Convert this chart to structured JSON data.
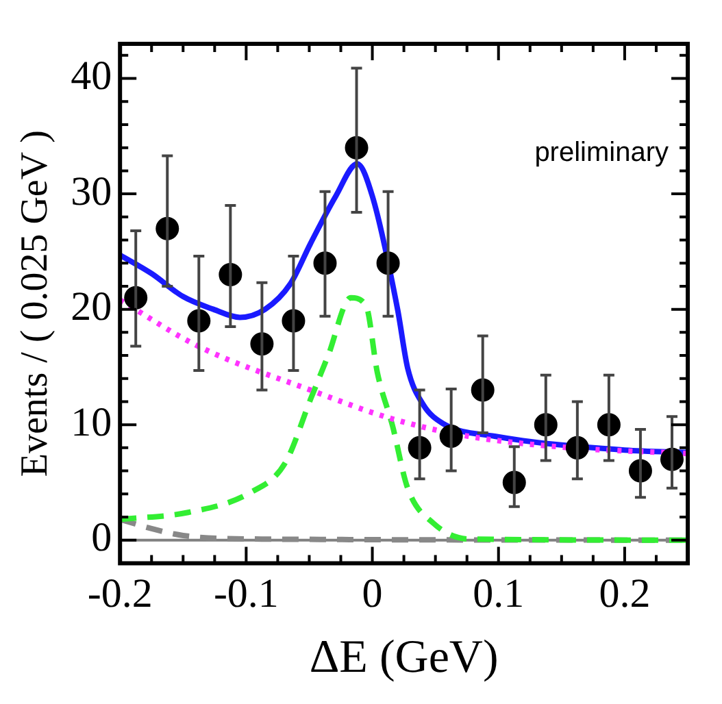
{
  "chart_data": {
    "type": "scatter",
    "xlabel": "ΔE (GeV)",
    "ylabel": "Events / ( 0.025 GeV )",
    "annotations": [
      "preliminary"
    ],
    "xlim": [
      -0.2,
      0.25
    ],
    "ylim": [
      -2,
      43
    ],
    "xticks": [
      -0.2,
      {
        "value": -0.175,
        "label": null
      },
      {
        "value": -0.15,
        "label": null
      },
      {
        "value": -0.125,
        "label": null
      },
      -0.1,
      {
        "value": -0.075,
        "label": null
      },
      {
        "value": -0.05,
        "label": null
      },
      {
        "value": -0.025,
        "label": null
      },
      0,
      {
        "value": 0.025,
        "label": null
      },
      {
        "value": 0.05,
        "label": null
      },
      {
        "value": 0.075,
        "label": null
      },
      0.1,
      {
        "value": 0.125,
        "label": null
      },
      {
        "value": 0.15,
        "label": null
      },
      {
        "value": 0.175,
        "label": null
      },
      0.2,
      {
        "value": 0.225,
        "label": null
      }
    ],
    "yticks": [
      {
        "value": -2,
        "label": null
      },
      0,
      {
        "value": 2,
        "label": null
      },
      {
        "value": 4,
        "label": null
      },
      {
        "value": 6,
        "label": null
      },
      {
        "value": 8,
        "label": null
      },
      10,
      {
        "value": 12,
        "label": null
      },
      {
        "value": 14,
        "label": null
      },
      {
        "value": 16,
        "label": null
      },
      {
        "value": 18,
        "label": null
      },
      20,
      {
        "value": 22,
        "label": null
      },
      {
        "value": 24,
        "label": null
      },
      {
        "value": 26,
        "label": null
      },
      {
        "value": 28,
        "label": null
      },
      30,
      {
        "value": 32,
        "label": null
      },
      {
        "value": 34,
        "label": null
      },
      {
        "value": 36,
        "label": null
      },
      {
        "value": 38,
        "label": null
      },
      40,
      {
        "value": 42,
        "label": null
      }
    ],
    "ref_lines": [
      {
        "axis": "y",
        "value": 0,
        "color": "#808080"
      }
    ],
    "legend": false,
    "series": [
      {
        "type": "line",
        "color": "#ff33ff",
        "line_style": "dotted",
        "marker": "none",
        "x": [
          -0.2,
          -0.138,
          -0.049,
          0.016,
          0.076,
          0.157,
          0.25
        ],
        "values": [
          20.8,
          16.8,
          13,
          10.5,
          9,
          8,
          7.5
        ]
      },
      {
        "type": "line",
        "color": "#33ee33",
        "line_style": "dashed",
        "marker": "none",
        "x": [
          -0.2,
          -0.146,
          -0.097,
          -0.069,
          -0.049,
          -0.035,
          -0.017,
          -0.005,
          0.004,
          0.016,
          0.028,
          0.048,
          0.076,
          0.25
        ],
        "values": [
          1.8,
          2.4,
          4.1,
          6.7,
          12.2,
          16,
          21,
          20.3,
          14.5,
          9.9,
          4.5,
          1.5,
          0.1,
          0
        ]
      },
      {
        "type": "line",
        "color": "#888888",
        "line_style": "dashed",
        "marker": "none",
        "x": [
          -0.2,
          -0.175,
          -0.15,
          -0.1,
          0.25
        ],
        "values": [
          1.8,
          1,
          0.4,
          0.1,
          0
        ]
      },
      {
        "type": "line",
        "color": "#1a1aff",
        "line_style": "solid",
        "marker": "none",
        "x": [
          -0.2,
          -0.175,
          -0.15,
          -0.126,
          -0.105,
          -0.085,
          -0.065,
          -0.049,
          -0.029,
          -0.012,
          0,
          0.02,
          0.028,
          0.04,
          0.056,
          0.097,
          0.2,
          0.25
        ],
        "values": [
          24.7,
          23.1,
          21.1,
          20,
          19.3,
          20,
          22.2,
          25.7,
          29.8,
          32.6,
          29.8,
          20,
          14.9,
          11.8,
          10.1,
          9,
          7.8,
          7.6
        ]
      },
      {
        "color": "#000000",
        "marker": "circle",
        "x": [
          -0.1875,
          -0.1625,
          -0.1375,
          -0.1125,
          -0.0875,
          -0.0625,
          -0.0375,
          -0.0125,
          0.0125,
          0.0375,
          0.0625,
          0.0875,
          0.1125,
          0.1375,
          0.1625,
          0.1875,
          0.2125,
          0.2375
        ],
        "values": [
          21,
          27,
          19,
          23,
          17,
          19,
          24,
          34,
          24,
          8,
          9,
          13,
          5,
          10,
          8,
          10,
          6,
          7
        ],
        "errors": [
          [
            16.8,
            26.8
          ],
          [
            22,
            33.3
          ],
          [
            14.7,
            24.6
          ],
          [
            18.5,
            29
          ],
          [
            13,
            22.3
          ],
          [
            14.7,
            24.6
          ],
          [
            19.4,
            30.2
          ],
          [
            28.4,
            40.9
          ],
          [
            19.4,
            30.2
          ],
          [
            5.3,
            13
          ],
          [
            6,
            13.1
          ],
          [
            9.3,
            17.7
          ],
          [
            2.9,
            8.1
          ],
          [
            6.9,
            14.3
          ],
          [
            5.3,
            12
          ],
          [
            6.9,
            14.3
          ],
          [
            3.7,
            9.6
          ],
          [
            4.5,
            10.7
          ]
        ]
      }
    ]
  }
}
